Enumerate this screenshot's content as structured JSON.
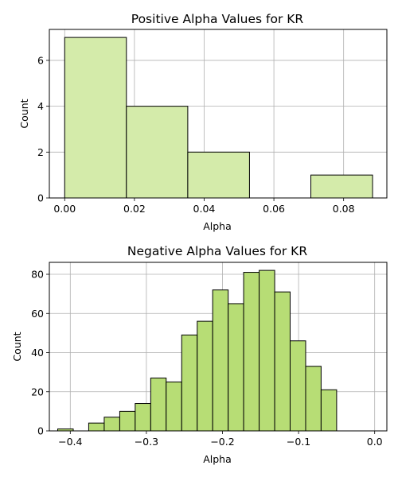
{
  "chart_data": [
    {
      "type": "bar",
      "title": "Positive Alpha Values for KR",
      "xlabel": "Alpha",
      "ylabel": "Count",
      "xlim": [
        -0.0044,
        0.0924
      ],
      "ylim": [
        0,
        7.35
      ],
      "xticks": [
        0.0,
        0.02,
        0.04,
        0.06,
        0.08
      ],
      "xtick_labels": [
        "0.00",
        "0.02",
        "0.04",
        "0.06",
        "0.08"
      ],
      "yticks": [
        0,
        2,
        4,
        6
      ],
      "ytick_labels": [
        "0",
        "2",
        "4",
        "6"
      ],
      "grid": true,
      "bar_color": "#d4ebaa",
      "edge_color": "#000000",
      "bins": [
        {
          "x0": 0.0,
          "x1": 0.0177,
          "count": 7
        },
        {
          "x0": 0.0177,
          "x1": 0.0353,
          "count": 4
        },
        {
          "x0": 0.0353,
          "x1": 0.053,
          "count": 2
        },
        {
          "x0": 0.053,
          "x1": 0.0706,
          "count": 0
        },
        {
          "x0": 0.0706,
          "x1": 0.0883,
          "count": 1
        }
      ]
    },
    {
      "type": "bar",
      "title": "Negative Alpha Values for KR",
      "xlabel": "Alpha",
      "ylabel": "Count",
      "xlim": [
        -0.4275,
        0.016
      ],
      "ylim": [
        0,
        86.1
      ],
      "xticks": [
        -0.4,
        -0.3,
        -0.2,
        -0.1,
        0.0
      ],
      "xtick_labels": [
        "−0.4",
        "−0.3",
        "−0.2",
        "−0.1",
        "0.0"
      ],
      "yticks": [
        0,
        20,
        40,
        60,
        80
      ],
      "ytick_labels": [
        "0",
        "20",
        "40",
        "60",
        "80"
      ],
      "grid": true,
      "bar_color": "#b7dd75",
      "edge_color": "#000000",
      "bins": [
        {
          "x0": -0.4165,
          "x1": -0.3961,
          "count": 1
        },
        {
          "x0": -0.3961,
          "x1": -0.3758,
          "count": 0
        },
        {
          "x0": -0.3758,
          "x1": -0.3554,
          "count": 4
        },
        {
          "x0": -0.3554,
          "x1": -0.335,
          "count": 7
        },
        {
          "x0": -0.335,
          "x1": -0.3147,
          "count": 10
        },
        {
          "x0": -0.3147,
          "x1": -0.2943,
          "count": 14
        },
        {
          "x0": -0.2943,
          "x1": -0.274,
          "count": 27
        },
        {
          "x0": -0.274,
          "x1": -0.2536,
          "count": 25
        },
        {
          "x0": -0.2536,
          "x1": -0.2332,
          "count": 49
        },
        {
          "x0": -0.2332,
          "x1": -0.2129,
          "count": 56
        },
        {
          "x0": -0.2129,
          "x1": -0.1925,
          "count": 72
        },
        {
          "x0": -0.1925,
          "x1": -0.1722,
          "count": 65
        },
        {
          "x0": -0.1722,
          "x1": -0.1518,
          "count": 81
        },
        {
          "x0": -0.1518,
          "x1": -0.1314,
          "count": 82
        },
        {
          "x0": -0.1314,
          "x1": -0.1111,
          "count": 71
        },
        {
          "x0": -0.1111,
          "x1": -0.0907,
          "count": 46
        },
        {
          "x0": -0.0907,
          "x1": -0.0704,
          "count": 33
        },
        {
          "x0": -0.0704,
          "x1": -0.05,
          "count": 21
        }
      ]
    }
  ]
}
